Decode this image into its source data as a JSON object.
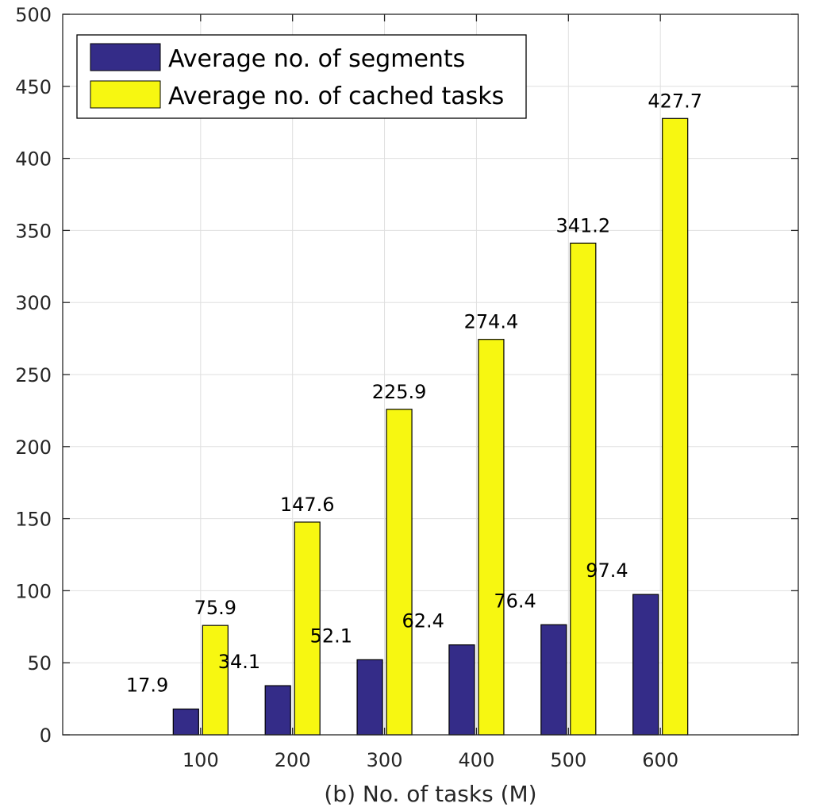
{
  "chart_data": {
    "type": "bar",
    "title": "",
    "xlabel": "(b) No. of tasks (M)",
    "ylabel": "",
    "categories": [
      "100",
      "200",
      "300",
      "400",
      "500",
      "600"
    ],
    "series": [
      {
        "name": "Average no. of segments",
        "color": "#342c88",
        "values": [
          17.9,
          34.1,
          52.1,
          62.4,
          76.4,
          97.4
        ]
      },
      {
        "name": "Average no. of cached tasks",
        "color": "#f7f711",
        "values": [
          75.9,
          147.6,
          225.9,
          274.4,
          341.2,
          427.7
        ]
      }
    ],
    "data_labels": [
      [
        "17.9",
        "34.1",
        "52.1",
        "62.4",
        "76.4",
        "97.4"
      ],
      [
        "75.9",
        "147.6",
        "225.9",
        "274.4",
        "341.2",
        "427.7"
      ]
    ],
    "ylim": [
      0,
      500
    ],
    "yticks": [
      0,
      50,
      100,
      150,
      200,
      250,
      300,
      350,
      400,
      450,
      500
    ],
    "grid": true,
    "legend_position": "top-left"
  }
}
